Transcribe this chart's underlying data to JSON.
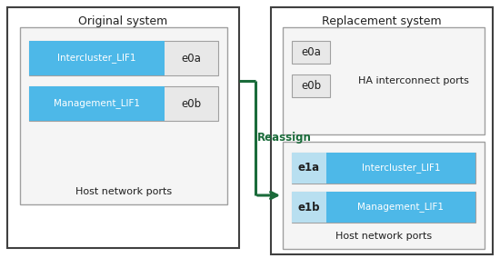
{
  "bg_color": "#ffffff",
  "border_color": "#404040",
  "inner_border_color": "#a0a0a0",
  "lif_blue": "#4db8e8",
  "lif_blue_light": "#b8dff0",
  "port_bg": "#e8e8e8",
  "green_arrow": "#1a6b3a",
  "text_dark": "#202020",
  "orig_title": "Original system",
  "repl_title": "Replacement system",
  "reassign_label": "Reassign",
  "orig_lifs": [
    "Intercluster_LIF1",
    "Management_LIF1"
  ],
  "orig_ports": [
    "e0a",
    "e0b"
  ],
  "ha_ports": [
    "e0a",
    "e0b"
  ],
  "ha_label": "HA interconnect ports",
  "host_ports_repl": [
    "e1a",
    "e1b"
  ],
  "host_lifs_repl": [
    "Intercluster_LIF1",
    "Management_LIF1"
  ],
  "host_label": "Host network ports"
}
